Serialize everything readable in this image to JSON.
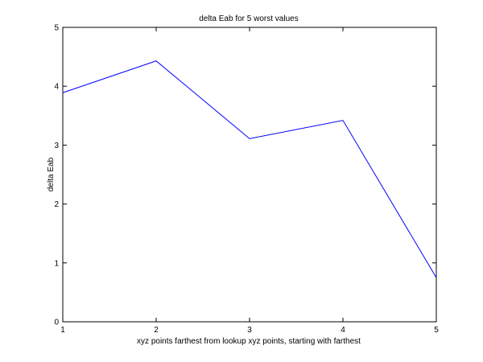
{
  "chart_data": {
    "type": "line",
    "title": "delta Eab for 5 worst values",
    "xlabel": "xyz points farthest from lookup xyz points, starting with farthest",
    "ylabel": "delta Eab",
    "x": [
      1,
      2,
      3,
      4,
      5
    ],
    "series": [
      {
        "values": [
          3.89,
          4.43,
          3.11,
          3.42,
          0.75
        ]
      }
    ],
    "xlim": [
      1,
      5
    ],
    "ylim": [
      0,
      5
    ],
    "xticks": [
      "1",
      "2",
      "3",
      "4",
      "5"
    ],
    "yticks": [
      "0",
      "1",
      "2",
      "3",
      "4",
      "5"
    ],
    "grid": false,
    "line_color": "#0000ff"
  }
}
